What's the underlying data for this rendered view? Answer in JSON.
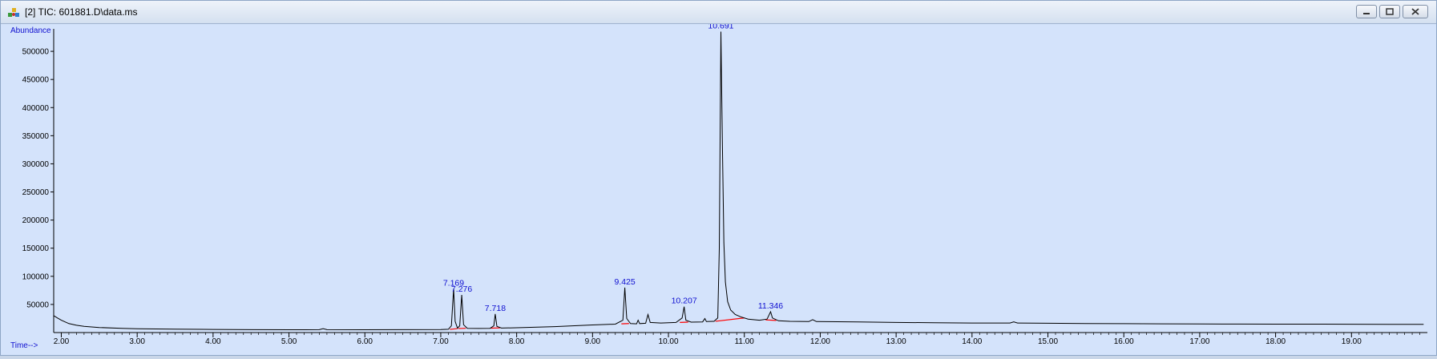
{
  "window": {
    "title": "[2] TIC: 601881.D\\data.ms",
    "icon": "chromatogram-app-icon",
    "controls": [
      "minimize-icon",
      "restore-icon",
      "close-icon"
    ]
  },
  "colors": {
    "background": "#d4e3fb",
    "trace": "#000000",
    "labels": "#1010d0",
    "baseline_marks": "#ff0000"
  },
  "chart_data": {
    "type": "line",
    "ylabel": "Abundance",
    "xlabel": "Time-->",
    "xlim": [
      1.9,
      20.0
    ],
    "ylim": [
      0,
      540000
    ],
    "x_ticks": [
      "2.00",
      "3.00",
      "4.00",
      "5.00",
      "6.00",
      "7.00",
      "8.00",
      "9.00",
      "10.00",
      "11.00",
      "12.00",
      "13.00",
      "14.00",
      "15.00",
      "16.00",
      "17.00",
      "18.00",
      "19.00"
    ],
    "y_ticks": [
      "50000",
      "100000",
      "150000",
      "200000",
      "250000",
      "300000",
      "350000",
      "400000",
      "450000",
      "500000"
    ],
    "grid": false,
    "series": [
      {
        "points": [
          [
            1.9,
            30000
          ],
          [
            1.95,
            26000
          ],
          [
            2.0,
            22000
          ],
          [
            2.05,
            19000
          ],
          [
            2.1,
            16000
          ],
          [
            2.2,
            13000
          ],
          [
            2.3,
            11000
          ],
          [
            2.5,
            9000
          ],
          [
            2.8,
            7500
          ],
          [
            3.0,
            6800
          ],
          [
            3.5,
            6000
          ],
          [
            4.0,
            5500
          ],
          [
            4.5,
            5200
          ],
          [
            5.0,
            5000
          ],
          [
            5.4,
            5100
          ],
          [
            5.45,
            7000
          ],
          [
            5.5,
            5100
          ],
          [
            6.0,
            5000
          ],
          [
            6.5,
            5100
          ],
          [
            7.0,
            5400
          ],
          [
            7.1,
            5800
          ],
          [
            7.14,
            12000
          ],
          [
            7.169,
            78000
          ],
          [
            7.19,
            20000
          ],
          [
            7.22,
            8000
          ],
          [
            7.25,
            12000
          ],
          [
            7.276,
            67000
          ],
          [
            7.3,
            14000
          ],
          [
            7.35,
            7500
          ],
          [
            7.5,
            7200
          ],
          [
            7.65,
            7600
          ],
          [
            7.7,
            12000
          ],
          [
            7.718,
            33000
          ],
          [
            7.74,
            11000
          ],
          [
            7.8,
            8000
          ],
          [
            8.0,
            8500
          ],
          [
            8.5,
            10500
          ],
          [
            9.0,
            13500
          ],
          [
            9.3,
            15000
          ],
          [
            9.4,
            22000
          ],
          [
            9.425,
            80000
          ],
          [
            9.45,
            25000
          ],
          [
            9.5,
            16000
          ],
          [
            9.58,
            15500
          ],
          [
            9.6,
            22000
          ],
          [
            9.62,
            16000
          ],
          [
            9.7,
            16500
          ],
          [
            9.73,
            32000
          ],
          [
            9.76,
            18000
          ],
          [
            9.9,
            17000
          ],
          [
            10.1,
            18000
          ],
          [
            10.18,
            26000
          ],
          [
            10.207,
            46000
          ],
          [
            10.23,
            22000
          ],
          [
            10.3,
            18500
          ],
          [
            10.45,
            19000
          ],
          [
            10.48,
            25000
          ],
          [
            10.5,
            19500
          ],
          [
            10.6,
            20000
          ],
          [
            10.65,
            26000
          ],
          [
            10.67,
            150000
          ],
          [
            10.691,
            535000
          ],
          [
            10.71,
            340000
          ],
          [
            10.73,
            160000
          ],
          [
            10.75,
            90000
          ],
          [
            10.78,
            55000
          ],
          [
            10.82,
            40000
          ],
          [
            10.88,
            32000
          ],
          [
            10.95,
            28000
          ],
          [
            11.05,
            24000
          ],
          [
            11.2,
            22000
          ],
          [
            11.3,
            24000
          ],
          [
            11.346,
            37000
          ],
          [
            11.37,
            26000
          ],
          [
            11.45,
            21000
          ],
          [
            11.6,
            20000
          ],
          [
            11.85,
            19500
          ],
          [
            11.9,
            23000
          ],
          [
            11.95,
            19500
          ],
          [
            12.5,
            19000
          ],
          [
            13.0,
            18000
          ],
          [
            13.5,
            17500
          ],
          [
            14.0,
            17000
          ],
          [
            14.5,
            17000
          ],
          [
            14.55,
            19000
          ],
          [
            14.6,
            17000
          ],
          [
            15.0,
            16500
          ],
          [
            15.5,
            16000
          ],
          [
            16.0,
            15800
          ],
          [
            16.5,
            15500
          ],
          [
            17.0,
            15300
          ],
          [
            17.5,
            15100
          ],
          [
            18.0,
            15000
          ],
          [
            18.5,
            14900
          ],
          [
            19.0,
            14800
          ],
          [
            19.5,
            14700
          ],
          [
            19.95,
            14600
          ]
        ]
      }
    ],
    "peak_labels": [
      {
        "x": 7.169,
        "y": 78000,
        "label": "7.169"
      },
      {
        "x": 7.276,
        "y": 67000,
        "label": "7.276"
      },
      {
        "x": 7.718,
        "y": 33000,
        "label": "7.718"
      },
      {
        "x": 9.425,
        "y": 80000,
        "label": "9.425"
      },
      {
        "x": 10.207,
        "y": 46000,
        "label": "10.207"
      },
      {
        "x": 10.691,
        "y": 535000,
        "label": "10.691"
      },
      {
        "x": 11.346,
        "y": 37000,
        "label": "11.346"
      }
    ],
    "baselines": [
      [
        [
          7.12,
          5600
        ],
        [
          7.22,
          7000
        ]
      ],
      [
        [
          7.23,
          7200
        ],
        [
          7.33,
          7600
        ]
      ],
      [
        [
          7.66,
          7800
        ],
        [
          7.78,
          8300
        ]
      ],
      [
        [
          9.38,
          15500
        ],
        [
          9.48,
          16000
        ]
      ],
      [
        [
          10.15,
          18000
        ],
        [
          10.26,
          18500
        ]
      ],
      [
        [
          10.62,
          20000
        ],
        [
          11.0,
          26000
        ]
      ],
      [
        [
          11.28,
          22500
        ],
        [
          11.42,
          21500
        ]
      ]
    ]
  }
}
